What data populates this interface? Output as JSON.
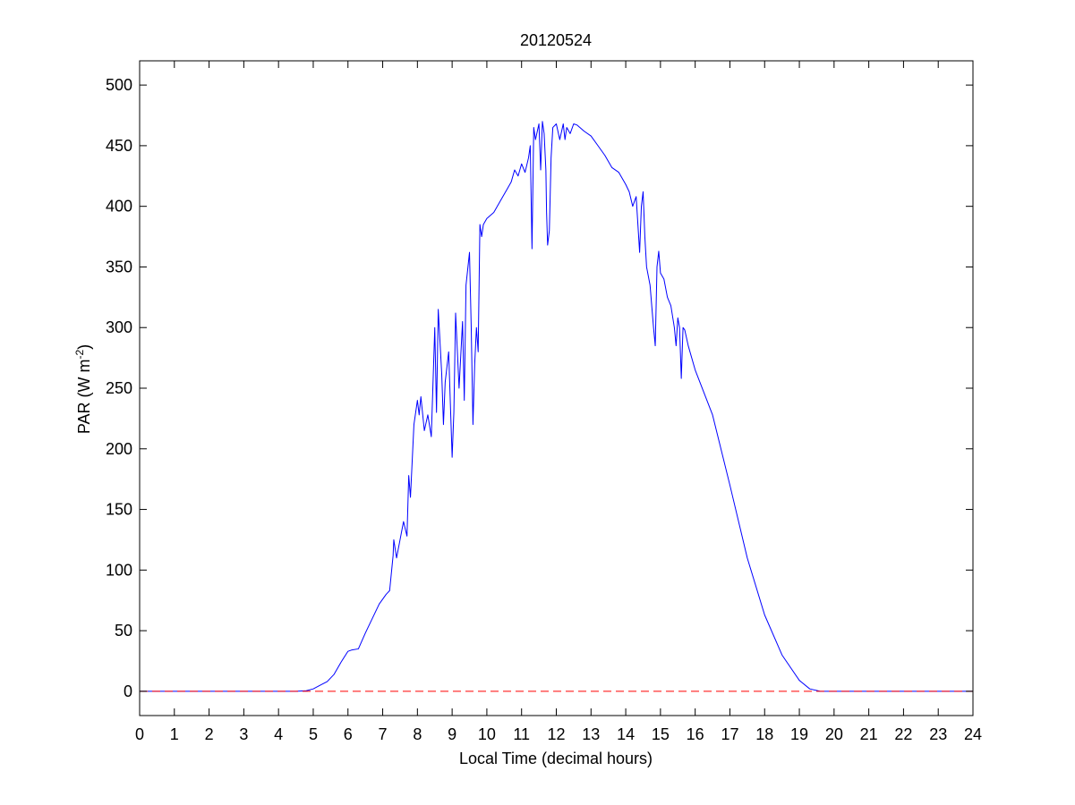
{
  "chart_data": {
    "type": "line",
    "title": "20120524",
    "xlabel": "Local Time (decimal hours)",
    "ylabel": {
      "main": "PAR (W m",
      "sup": "-2",
      "close": ")"
    },
    "xlim": [
      0,
      24
    ],
    "ylim": [
      -20,
      520
    ],
    "xticks": [
      0,
      1,
      2,
      3,
      4,
      5,
      6,
      7,
      8,
      9,
      10,
      11,
      12,
      13,
      14,
      15,
      16,
      17,
      18,
      19,
      20,
      21,
      22,
      23,
      24
    ],
    "yticks": [
      0,
      50,
      100,
      150,
      200,
      250,
      300,
      350,
      400,
      450,
      500
    ],
    "grid": false,
    "series": [
      {
        "color": "#0000ff",
        "style": "solid",
        "points": [
          [
            0,
            0
          ],
          [
            4.5,
            0
          ],
          [
            4.8,
            0.5
          ],
          [
            5.0,
            2
          ],
          [
            5.2,
            5
          ],
          [
            5.4,
            8
          ],
          [
            5.6,
            14
          ],
          [
            5.8,
            24
          ],
          [
            6.0,
            33
          ],
          [
            6.1,
            34
          ],
          [
            6.3,
            35
          ],
          [
            6.5,
            48
          ],
          [
            6.7,
            60
          ],
          [
            6.9,
            72
          ],
          [
            7.1,
            80
          ],
          [
            7.2,
            83
          ],
          [
            7.3,
            112
          ],
          [
            7.32,
            125
          ],
          [
            7.4,
            110
          ],
          [
            7.5,
            125
          ],
          [
            7.6,
            140
          ],
          [
            7.7,
            128
          ],
          [
            7.75,
            178
          ],
          [
            7.8,
            160
          ],
          [
            7.9,
            220
          ],
          [
            8.0,
            240
          ],
          [
            8.05,
            228
          ],
          [
            8.1,
            243
          ],
          [
            8.2,
            215
          ],
          [
            8.3,
            228
          ],
          [
            8.4,
            210
          ],
          [
            8.5,
            300
          ],
          [
            8.55,
            230
          ],
          [
            8.6,
            315
          ],
          [
            8.7,
            262
          ],
          [
            8.75,
            220
          ],
          [
            8.8,
            255
          ],
          [
            8.9,
            280
          ],
          [
            9.0,
            193
          ],
          [
            9.05,
            230
          ],
          [
            9.1,
            312
          ],
          [
            9.2,
            250
          ],
          [
            9.3,
            305
          ],
          [
            9.35,
            240
          ],
          [
            9.4,
            335
          ],
          [
            9.5,
            362
          ],
          [
            9.55,
            300
          ],
          [
            9.6,
            220
          ],
          [
            9.65,
            270
          ],
          [
            9.7,
            300
          ],
          [
            9.75,
            280
          ],
          [
            9.8,
            385
          ],
          [
            9.85,
            375
          ],
          [
            9.9,
            385
          ],
          [
            10.0,
            390
          ],
          [
            10.2,
            395
          ],
          [
            10.4,
            405
          ],
          [
            10.6,
            415
          ],
          [
            10.7,
            420
          ],
          [
            10.8,
            430
          ],
          [
            10.9,
            425
          ],
          [
            11.0,
            435
          ],
          [
            11.1,
            428
          ],
          [
            11.2,
            440
          ],
          [
            11.25,
            450
          ],
          [
            11.3,
            365
          ],
          [
            11.35,
            465
          ],
          [
            11.4,
            455
          ],
          [
            11.5,
            468
          ],
          [
            11.55,
            430
          ],
          [
            11.6,
            470
          ],
          [
            11.65,
            460
          ],
          [
            11.7,
            430
          ],
          [
            11.72,
            395
          ],
          [
            11.75,
            368
          ],
          [
            11.8,
            380
          ],
          [
            11.85,
            440
          ],
          [
            11.9,
            465
          ],
          [
            12.0,
            468
          ],
          [
            12.1,
            455
          ],
          [
            12.2,
            468
          ],
          [
            12.25,
            455
          ],
          [
            12.3,
            465
          ],
          [
            12.4,
            460
          ],
          [
            12.5,
            468
          ],
          [
            12.6,
            467
          ],
          [
            12.8,
            462
          ],
          [
            13.0,
            458
          ],
          [
            13.2,
            450
          ],
          [
            13.4,
            442
          ],
          [
            13.6,
            432
          ],
          [
            13.8,
            428
          ],
          [
            14.0,
            418
          ],
          [
            14.1,
            412
          ],
          [
            14.2,
            400
          ],
          [
            14.3,
            408
          ],
          [
            14.35,
            385
          ],
          [
            14.4,
            362
          ],
          [
            14.45,
            400
          ],
          [
            14.5,
            412
          ],
          [
            14.55,
            375
          ],
          [
            14.6,
            350
          ],
          [
            14.7,
            335
          ],
          [
            14.8,
            300
          ],
          [
            14.85,
            285
          ],
          [
            14.9,
            350
          ],
          [
            14.95,
            363
          ],
          [
            15.0,
            345
          ],
          [
            15.1,
            340
          ],
          [
            15.2,
            325
          ],
          [
            15.3,
            318
          ],
          [
            15.4,
            300
          ],
          [
            15.45,
            285
          ],
          [
            15.5,
            308
          ],
          [
            15.55,
            300
          ],
          [
            15.6,
            258
          ],
          [
            15.65,
            300
          ],
          [
            15.7,
            298
          ],
          [
            15.8,
            285
          ],
          [
            16.0,
            265
          ],
          [
            16.5,
            228
          ],
          [
            17.0,
            170
          ],
          [
            17.5,
            110
          ],
          [
            18.0,
            63
          ],
          [
            18.5,
            30
          ],
          [
            19.0,
            9
          ],
          [
            19.3,
            2
          ],
          [
            19.6,
            0
          ],
          [
            20.0,
            0
          ],
          [
            24.0,
            0
          ]
        ]
      },
      {
        "color": "#ff0000",
        "style": "dashed",
        "points": [
          [
            0,
            0
          ],
          [
            24,
            0
          ]
        ]
      }
    ]
  }
}
